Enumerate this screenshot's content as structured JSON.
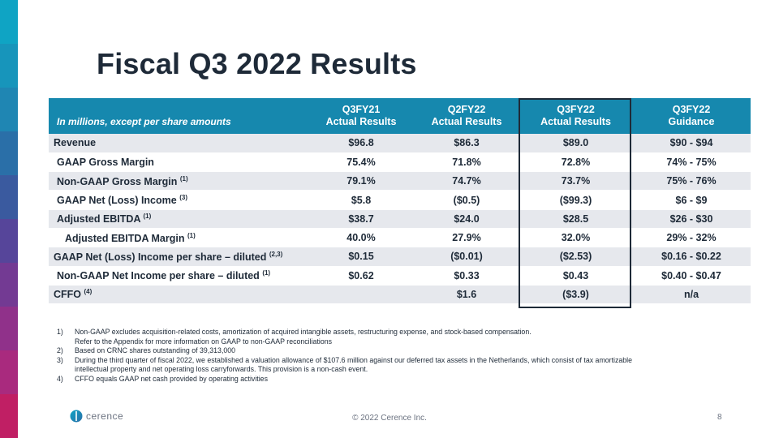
{
  "colors": {
    "header_bg": "#1688ae",
    "row_alt": "#e6e8ed",
    "title": "#1e2a38",
    "side_strip": [
      "#0fa4c4",
      "#1795bb",
      "#1f86b3",
      "#2a6fa8",
      "#3a5a9f",
      "#56459a",
      "#733a93",
      "#90318a",
      "#a92a7e",
      "#c01f64"
    ]
  },
  "title": "Fiscal Q3 2022 Results",
  "table": {
    "units_label": "In millions, except per share amounts",
    "columns": [
      {
        "line1": "Q3FY21",
        "line2": "Actual Results"
      },
      {
        "line1": "Q2FY22",
        "line2": "Actual Results"
      },
      {
        "line1": "Q3FY22",
        "line2": "Actual Results"
      },
      {
        "line1": "Q3FY22",
        "line2": "Guidance"
      }
    ],
    "rows": [
      {
        "label": "Revenue",
        "note": "",
        "values": [
          "$96.8",
          "$86.3",
          "$89.0",
          "$90 - $94"
        ]
      },
      {
        "label": "GAAP Gross Margin",
        "note": "",
        "values": [
          "75.4%",
          "71.8%",
          "72.8%",
          "74% - 75%"
        ]
      },
      {
        "label": "Non-GAAP Gross Margin",
        "note": "(1)",
        "values": [
          "79.1%",
          "74.7%",
          "73.7%",
          "75% - 76%"
        ]
      },
      {
        "label": "GAAP Net (Loss) Income",
        "note": "(3)",
        "values": [
          "$5.8",
          "($0.5)",
          "($99.3)",
          "$6 - $9"
        ]
      },
      {
        "label": "Adjusted EBITDA",
        "note": "(1)",
        "values": [
          "$38.7",
          "$24.0",
          "$28.5",
          "$26 - $30"
        ]
      },
      {
        "label": "Adjusted EBITDA Margin",
        "note": "(1)",
        "values": [
          "40.0%",
          "27.9%",
          "32.0%",
          "29% - 32%"
        ]
      },
      {
        "label": "GAAP Net (Loss) Income per share – diluted",
        "note": "(2,3)",
        "values": [
          "$0.15",
          "($0.01)",
          "($2.53)",
          "$0.16 - $0.22"
        ]
      },
      {
        "label": "Non-GAAP Net Income per share – diluted",
        "note": "(1)",
        "values": [
          "$0.62",
          "$0.33",
          "$0.43",
          "$0.40 - $0.47"
        ]
      },
      {
        "label": "CFFO",
        "note": "(4)",
        "values": [
          "",
          "$1.6",
          "($3.9)",
          "n/a"
        ]
      }
    ]
  },
  "footnotes": [
    {
      "num": "1)",
      "lines": [
        "Non-GAAP excludes acquisition-related costs, amortization of acquired intangible assets, restructuring expense, and stock-based compensation.",
        "Refer to the Appendix for more information on GAAP to non-GAAP reconciliations"
      ]
    },
    {
      "num": "2)",
      "lines": [
        "Based on CRNC shares outstanding of 39,313,000"
      ]
    },
    {
      "num": "3)",
      "lines": [
        "During the third quarter of fiscal 2022, we established a valuation allowance of $107.6 million against our deferred tax assets in the Netherlands, which consist of tax amortizable",
        "intellectual property and net operating loss carryforwards. This provision is a non-cash event."
      ]
    },
    {
      "num": "4)",
      "lines": [
        "CFFO equals GAAP net cash provided by operating activities"
      ]
    }
  ],
  "footer": {
    "logo_text": "cerence",
    "logo_icon": "cerence-logo-icon",
    "copyright": "© 2022 Cerence Inc.",
    "page_number": "8"
  }
}
